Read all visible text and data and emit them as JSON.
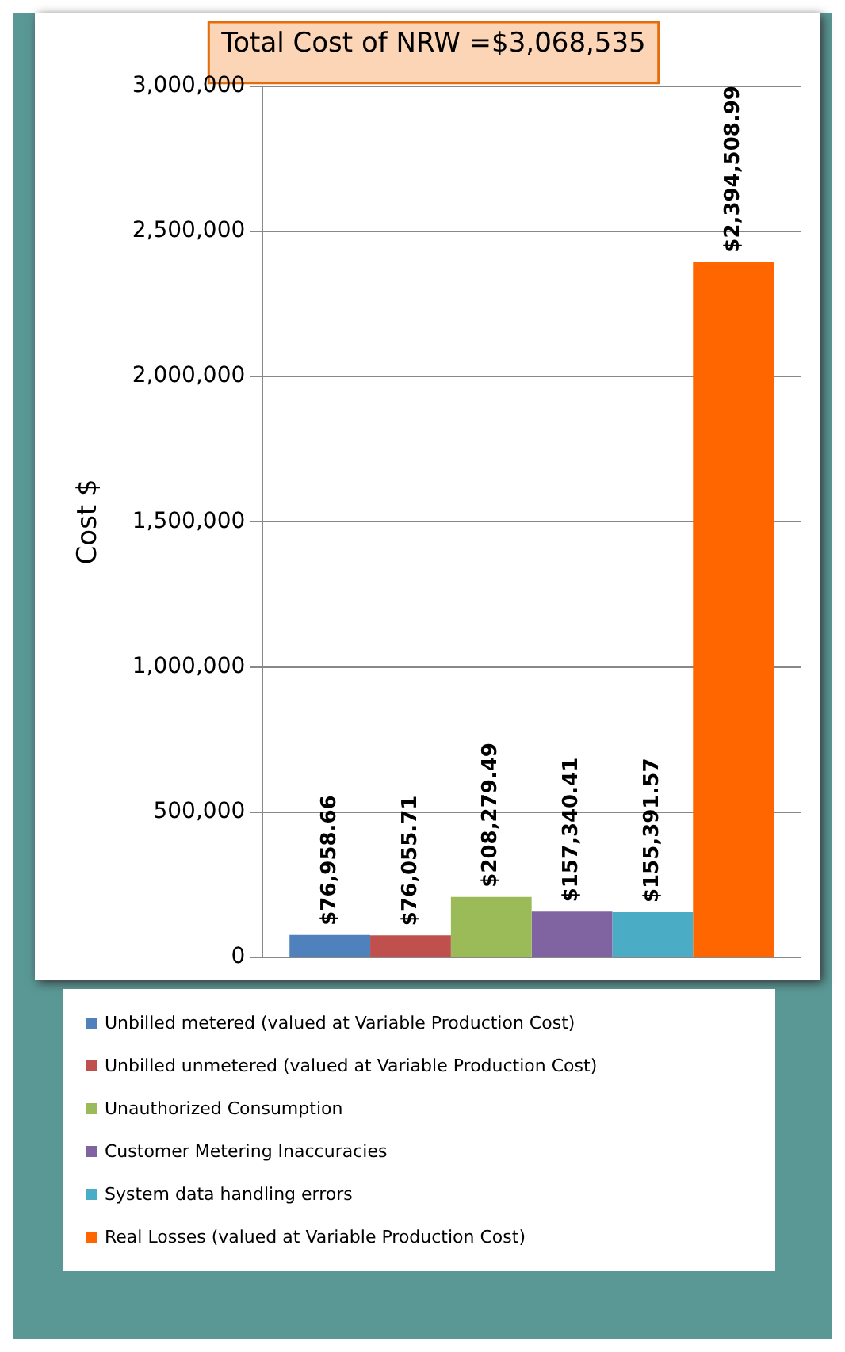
{
  "chart_data": {
    "type": "bar",
    "title": "Total Cost of NRW =$3,068,535",
    "ylabel": "Cost $",
    "categories": [
      null
    ],
    "series": [
      {
        "name": "Unbilled metered (valued at Variable Production Cost)",
        "color": "#4f81bd",
        "values": [
          76958.66
        ],
        "value_labels": [
          "$76,958.66"
        ]
      },
      {
        "name": "Unbilled unmetered (valued at Variable Production Cost)",
        "color": "#c0504d",
        "values": [
          76055.71
        ],
        "value_labels": [
          "$76,055.71"
        ]
      },
      {
        "name": "Unauthorized Consumption",
        "color": "#9bbb59",
        "values": [
          208279.49
        ],
        "value_labels": [
          "$208,279.49"
        ]
      },
      {
        "name": "Customer Metering Inaccuracies",
        "color": "#8064a2",
        "values": [
          157340.41
        ],
        "value_labels": [
          "$157,340.41"
        ]
      },
      {
        "name": "System data handling errors",
        "color": "#4bacc6",
        "values": [
          155391.57
        ],
        "value_labels": [
          "$155,391.57"
        ]
      },
      {
        "name": "Real Losses (valued at Variable Production Cost)",
        "color": "#ff6600",
        "values": [
          2394508.99
        ],
        "value_labels": [
          "$2,394,508.99"
        ]
      }
    ],
    "ylim": [
      0,
      3000000
    ],
    "yticks": [
      0,
      {
        "value": 500000,
        "label": "500,000"
      },
      {
        "value": 1000000,
        "label": "1,000,000"
      },
      {
        "value": 1500000,
        "label": "1,500,000"
      },
      {
        "value": 2000000,
        "label": "2,000,000"
      },
      {
        "value": 2500000,
        "label": "2,500,000"
      },
      {
        "value": 3000000,
        "label": "3,000,000"
      }
    ],
    "grid": "y",
    "legend": "bottom"
  }
}
